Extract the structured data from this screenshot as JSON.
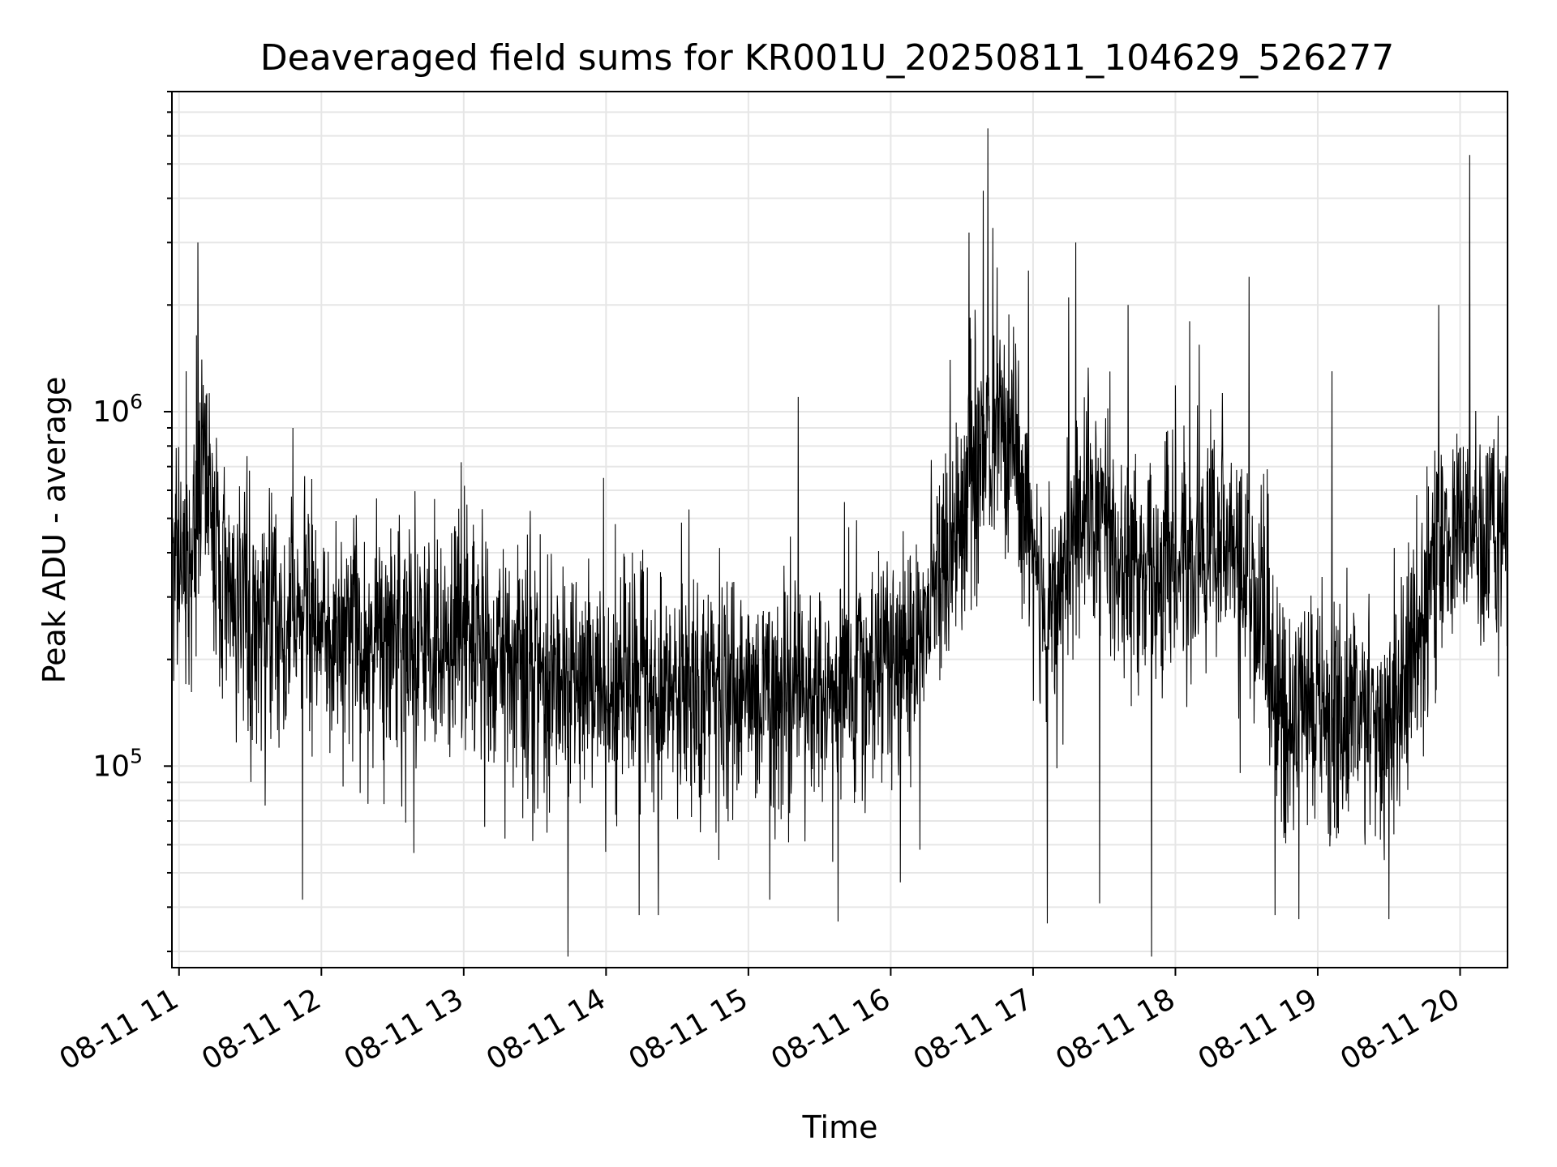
{
  "chart_data": {
    "type": "line",
    "title": "Deaveraged field sums for KR001U_20250811_104629_526277",
    "xlabel": "Time",
    "ylabel": "Peak ADU - average",
    "yscale": "log",
    "ylim": [
      27000,
      8000000
    ],
    "xlim": [
      "2025-08-11 10:57",
      "2025-08-11 20:20"
    ],
    "x_ticks": [
      "08-11 11",
      "08-11 12",
      "08-11 13",
      "08-11 14",
      "08-11 15",
      "08-11 16",
      "08-11 17",
      "08-11 18",
      "08-11 19",
      "08-11 20"
    ],
    "y_ticks": [
      {
        "base": "10",
        "exp": "5",
        "value": 100000
      },
      {
        "base": "10",
        "exp": "6",
        "value": 1000000
      }
    ],
    "grid": true,
    "line_color": "#000000",
    "series": [
      {
        "values_note": "",
        "profile": [
          [
            "2025-08-11 10:57",
            350000
          ],
          [
            "2025-08-11 11:05",
            420000
          ],
          [
            "2025-08-11 11:10",
            750000
          ],
          [
            "2025-08-11 11:15",
            400000
          ],
          [
            "2025-08-11 11:30",
            270000
          ],
          [
            "2025-08-11 12:00",
            240000
          ],
          [
            "2025-08-11 12:30",
            230000
          ],
          [
            "2025-08-11 13:00",
            220000
          ],
          [
            "2025-08-11 13:30",
            190000
          ],
          [
            "2025-08-11 14:00",
            170000
          ],
          [
            "2025-08-11 14:30",
            170000
          ],
          [
            "2025-08-11 15:00",
            160000
          ],
          [
            "2025-08-11 15:30",
            150000
          ],
          [
            "2025-08-11 16:00",
            200000
          ],
          [
            "2025-08-11 16:20",
            280000
          ],
          [
            "2025-08-11 16:35",
            700000
          ],
          [
            "2025-08-11 16:45",
            1000000
          ],
          [
            "2025-08-11 16:55",
            600000
          ],
          [
            "2025-08-11 17:05",
            250000
          ],
          [
            "2025-08-11 17:15",
            400000
          ],
          [
            "2025-08-11 17:25",
            600000
          ],
          [
            "2025-08-11 17:40",
            350000
          ],
          [
            "2025-08-11 18:00",
            350000
          ],
          [
            "2025-08-11 18:20",
            450000
          ],
          [
            "2025-08-11 18:35",
            280000
          ],
          [
            "2025-08-11 18:45",
            150000
          ],
          [
            "2025-08-11 19:15",
            130000
          ],
          [
            "2025-08-11 19:35",
            150000
          ],
          [
            "2025-08-11 19:45",
            300000
          ],
          [
            "2025-08-11 20:00",
            480000
          ],
          [
            "2025-08-11 20:20",
            450000
          ]
        ],
        "spikes": [
          [
            "2025-08-11 11:08",
            3000000
          ],
          [
            "2025-08-11 11:03",
            1300000
          ],
          [
            "2025-08-11 11:11",
            1050000
          ],
          [
            "2025-08-11 11:48",
            900000
          ],
          [
            "2025-08-11 11:52",
            42000
          ],
          [
            "2025-08-11 12:59",
            720000
          ],
          [
            "2025-08-11 13:44",
            29000
          ],
          [
            "2025-08-11 13:59",
            650000
          ],
          [
            "2025-08-11 14:14",
            38000
          ],
          [
            "2025-08-11 14:22",
            38000
          ],
          [
            "2025-08-11 15:09",
            42000
          ],
          [
            "2025-08-11 15:21",
            1100000
          ],
          [
            "2025-08-11 16:04",
            47000
          ],
          [
            "2025-08-11 16:25",
            1400000
          ],
          [
            "2025-08-11 16:33",
            3200000
          ],
          [
            "2025-08-11 16:39",
            4200000
          ],
          [
            "2025-08-11 16:41",
            6300000
          ],
          [
            "2025-08-11 16:43",
            3300000
          ],
          [
            "2025-08-11 16:58",
            2500000
          ],
          [
            "2025-08-11 17:06",
            36000
          ],
          [
            "2025-08-11 17:15",
            2100000
          ],
          [
            "2025-08-11 17:18",
            3000000
          ],
          [
            "2025-08-11 17:28",
            41000
          ],
          [
            "2025-08-11 17:40",
            2000000
          ],
          [
            "2025-08-11 17:50",
            29000
          ],
          [
            "2025-08-11 18:06",
            1800000
          ],
          [
            "2025-08-11 18:31",
            2400000
          ],
          [
            "2025-08-11 18:42",
            38000
          ],
          [
            "2025-08-11 18:52",
            37000
          ],
          [
            "2025-08-11 19:06",
            1300000
          ],
          [
            "2025-08-11 19:20",
            60000
          ],
          [
            "2025-08-11 19:30",
            37000
          ],
          [
            "2025-08-11 19:51",
            2000000
          ],
          [
            "2025-08-11 20:04",
            5300000
          ],
          [
            "2025-08-11 20:20",
            1500000
          ]
        ]
      }
    ]
  }
}
